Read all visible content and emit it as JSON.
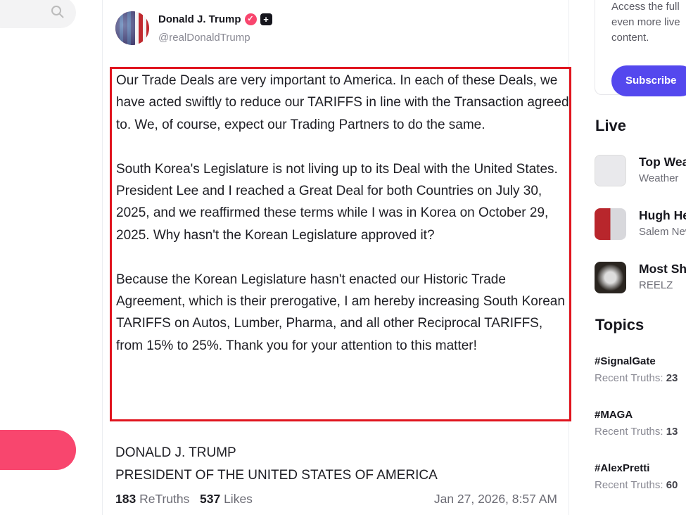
{
  "sidebar": {
    "search_icon": "search-icon"
  },
  "post": {
    "author": "Donald J. Trump",
    "handle": "@realDonaldTrump",
    "paragraphs": [
      "Our Trade Deals are very important to America. In each of these Deals, we have acted swiftly to reduce our TARIFFS in line with the Transaction agreed to. We, of course, expect our Trading Partners to do the same.",
      "South Korea's Legislature is not living up to its Deal with the United States. President Lee and I reached a Great Deal for both Countries on July 30, 2025, and we reaffirmed these terms while I was in Korea on October 29, 2025. Why hasn't the Korean Legislature approved it?",
      "Because the Korean Legislature hasn't enacted our Historic Trade Agreement, which is their prerogative, I am hereby increasing South Korean TARIFFS on Autos, Lumber, Pharma, and all other Reciprocal TARIFFS, from 15% to 25%. Thank you for your attention to this matter!"
    ],
    "signature_line1": "DONALD J. TRUMP",
    "signature_line2": "PRESIDENT OF THE UNITED STATES OF AMERICA",
    "retruths_count": "183",
    "retruths_label": "ReTruths",
    "likes_count": "537",
    "likes_label": "Likes",
    "timestamp": "Jan 27, 2026, 8:57 AM"
  },
  "right": {
    "promo_lines": [
      "Access the full",
      "even more live",
      "content."
    ],
    "subscribe_label": "Subscribe",
    "live_heading": "Live",
    "live": [
      {
        "title": "Top Weather",
        "source": "Weather"
      },
      {
        "title": "Hugh Hewitt",
        "source": "Salem News"
      },
      {
        "title": "Most Shocking",
        "source": "REELZ"
      }
    ],
    "topics_heading": "Topics",
    "topics": [
      {
        "tag": "#SignalGate",
        "label": "Recent Truths:",
        "count": "23"
      },
      {
        "tag": "#MAGA",
        "label": "Recent Truths:",
        "count": "13"
      },
      {
        "tag": "#AlexPretti",
        "label": "Recent Truths:",
        "count": "60"
      }
    ]
  },
  "colors": {
    "accent_pink": "#f8466e",
    "subscribe": "#5448ee",
    "highlight_box": "#e0141e"
  }
}
